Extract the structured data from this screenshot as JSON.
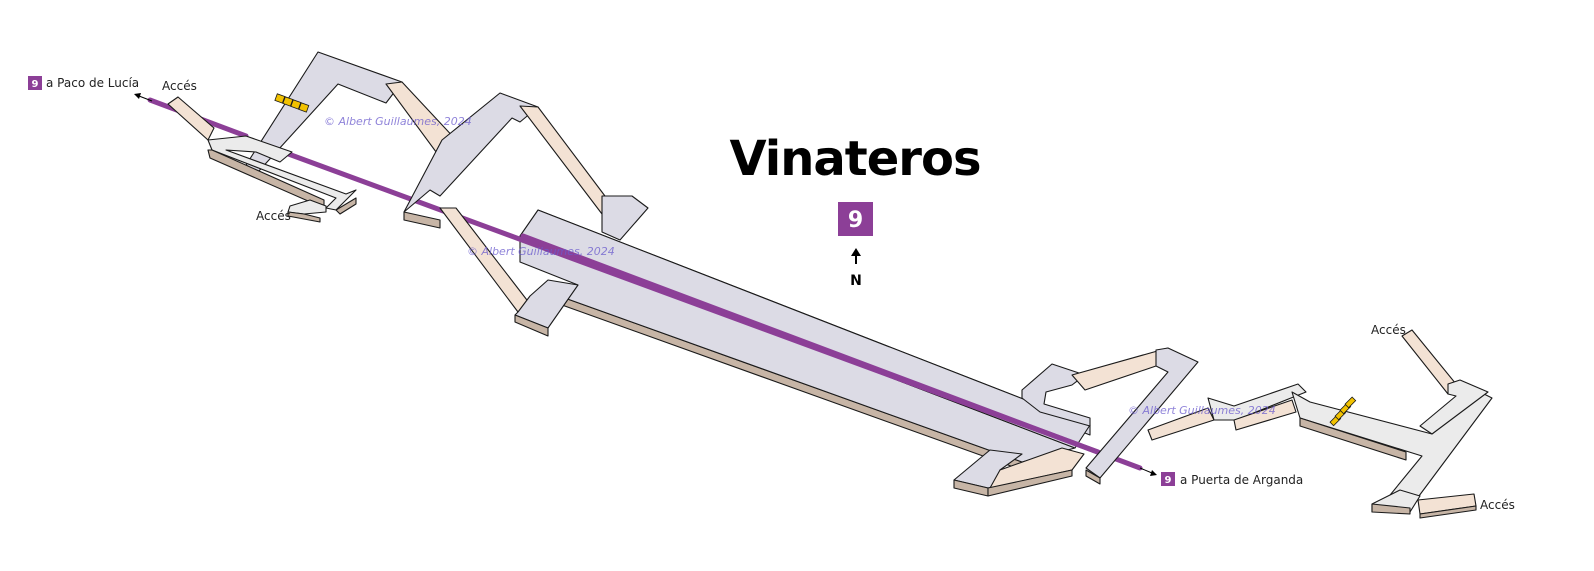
{
  "station": {
    "name": "Vinateros",
    "line_number": "9",
    "line_color": "#8c3f97",
    "north_label": "N"
  },
  "destinations": {
    "west": "a Paco de Lucía",
    "east": "a Puerta de Arganda"
  },
  "exits": {
    "label": "Accés"
  },
  "watermark": "© Albert Guillaumes, 2024",
  "colors": {
    "floor": "#dcdbe5",
    "stair": "#f3e2d4",
    "wall": "#c7b5a6",
    "escalator": "#f2c200"
  }
}
